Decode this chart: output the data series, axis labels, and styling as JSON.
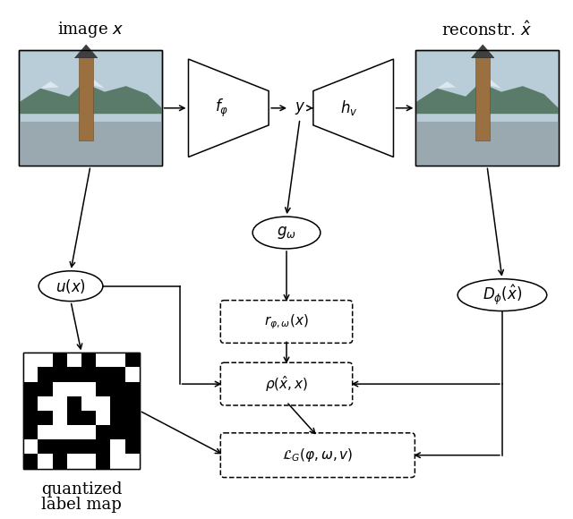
{
  "bg_color": "#ffffff",
  "fig_width": 6.4,
  "fig_height": 5.8,
  "image_x_label": "image $x$",
  "reconstr_label": "reconstr. $\\hat{x}$",
  "quant_label1": "quantized",
  "quant_label2": "label map",
  "f_label": "$f_{\\varphi}$",
  "y_label": "$y$",
  "h_label": "$h_{v}$",
  "g_label": "$g_{\\omega}$",
  "u_label": "$u(x)$",
  "r_label": "$r_{\\varphi,\\omega}(x)$",
  "rho_label": "$\\rho(\\hat{x}, x)$",
  "L_label": "$\\mathcal{L}_G(\\varphi, \\omega, v)$",
  "D_label": "$D_{\\phi}(\\hat{x})$",
  "lw": 1.1
}
